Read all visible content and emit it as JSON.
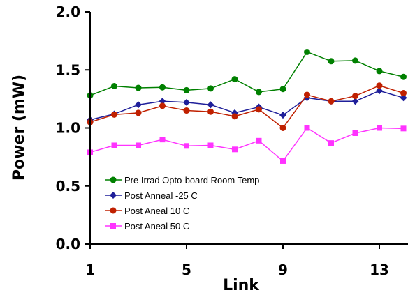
{
  "chart_data": {
    "type": "line",
    "xlabel": "Link",
    "ylabel": "Power (mW)",
    "xlim": [
      1,
      14
    ],
    "ylim": [
      0.0,
      2.0
    ],
    "x_ticks": [
      "1",
      "5",
      "9",
      "13"
    ],
    "y_ticks": [
      "0.0",
      "0.5",
      "1.0",
      "1.5",
      "2.0"
    ],
    "grid": false,
    "legend_position": "lower-left",
    "x": [
      1,
      2,
      3,
      4,
      5,
      6,
      7,
      8,
      9,
      10,
      11,
      12,
      13,
      14
    ],
    "series": [
      {
        "name": "Pre Irrad Opto-board Room Temp",
        "color": "#008000",
        "marker": "circle",
        "values": [
          1.28,
          1.36,
          1.345,
          1.35,
          1.325,
          1.34,
          1.42,
          1.31,
          1.335,
          1.655,
          1.575,
          1.58,
          1.49,
          1.44
        ]
      },
      {
        "name": "Post Anneal -25 C",
        "color": "#1f1f9a",
        "marker": "diamond",
        "values": [
          1.07,
          1.12,
          1.2,
          1.23,
          1.22,
          1.2,
          1.13,
          1.18,
          1.11,
          1.26,
          1.23,
          1.23,
          1.32,
          1.26
        ]
      },
      {
        "name": "Post Aneal 10 C",
        "color": "#c02000",
        "marker": "circle",
        "values": [
          1.05,
          1.115,
          1.13,
          1.19,
          1.15,
          1.14,
          1.1,
          1.16,
          1.0,
          1.285,
          1.23,
          1.275,
          1.365,
          1.3
        ]
      },
      {
        "name": "Post Aneal 50 C",
        "color": "#ff33ff",
        "marker": "square",
        "values": [
          0.79,
          0.85,
          0.85,
          0.9,
          0.845,
          0.85,
          0.815,
          0.89,
          0.715,
          1.0,
          0.87,
          0.955,
          1.0,
          0.995
        ]
      }
    ]
  }
}
